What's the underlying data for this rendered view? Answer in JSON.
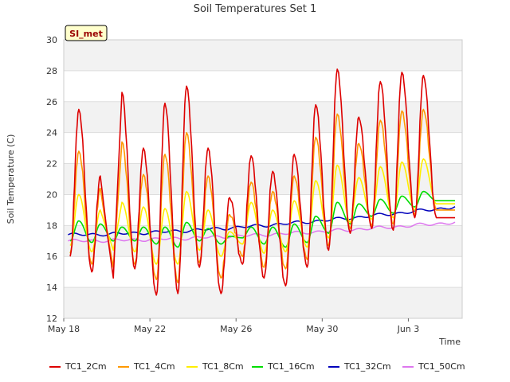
{
  "chart_data": {
    "type": "line",
    "title": "Soil Temperatures Set 1",
    "xlabel": "Time",
    "ylabel": "Soil Temperature (C)",
    "ylim": [
      12,
      30
    ],
    "yticks": [
      "12",
      "14",
      "16",
      "18",
      "20",
      "22",
      "24",
      "26",
      "28",
      "30"
    ],
    "xlim": [
      "2023-05-18",
      "2023-06-05T12:00"
    ],
    "xticks": [
      {
        "date": "2023-05-18",
        "label": "May 18"
      },
      {
        "date": "2023-05-22",
        "label": "May 22"
      },
      {
        "date": "2023-05-26",
        "label": "May 26"
      },
      {
        "date": "2023-05-30",
        "label": "May 30"
      },
      {
        "date": "2023-06-03",
        "label": "Jun 3"
      }
    ],
    "grid": "horizontal bands",
    "legend_placement": "bottom",
    "annotation": "SI_met",
    "days": [
      "2023-05-18",
      "2023-05-19",
      "2023-05-20",
      "2023-05-21",
      "2023-05-22",
      "2023-05-23",
      "2023-05-24",
      "2023-05-25",
      "2023-05-26",
      "2023-05-27",
      "2023-05-28",
      "2023-05-29",
      "2023-05-30",
      "2023-05-31",
      "2023-06-01",
      "2023-06-02",
      "2023-06-03",
      "2023-06-04",
      "2023-06-05"
    ],
    "series": [
      {
        "name": "TC1_2Cm",
        "color": "#dd0000",
        "daily_max": [
          25.5,
          21.2,
          26.6,
          23.0,
          25.9,
          27.0,
          23.0,
          19.8,
          22.5,
          21.5,
          22.6,
          25.8,
          28.1,
          25.0,
          27.3,
          27.9,
          27.7,
          null,
          null
        ],
        "daily_min": [
          16.0,
          15.0,
          14.6,
          15.2,
          13.5,
          13.6,
          15.3,
          13.6,
          15.5,
          14.6,
          14.1,
          15.3,
          16.4,
          17.5,
          17.8,
          17.7,
          18.5,
          18.5,
          null
        ]
      },
      {
        "name": "TC1_4Cm",
        "color": "#ff9900",
        "daily_max": [
          22.8,
          20.4,
          23.4,
          21.3,
          22.6,
          24.0,
          21.2,
          18.7,
          20.8,
          20.2,
          21.2,
          23.7,
          25.2,
          23.3,
          24.8,
          25.4,
          25.5,
          null,
          null
        ],
        "daily_min": [
          16.2,
          15.5,
          15.3,
          15.5,
          14.5,
          14.3,
          15.6,
          14.6,
          16.0,
          15.3,
          15.2,
          15.8,
          16.7,
          17.8,
          18.0,
          18.1,
          18.7,
          19.0,
          null
        ]
      },
      {
        "name": "TC1_8Cm",
        "color": "#ffee00",
        "daily_max": [
          20.0,
          19.0,
          19.5,
          19.2,
          19.1,
          20.2,
          19.0,
          17.6,
          19.5,
          19.0,
          19.6,
          20.9,
          21.9,
          21.1,
          21.8,
          22.1,
          22.3,
          null,
          null
        ],
        "daily_min": [
          16.7,
          16.3,
          16.4,
          16.3,
          15.5,
          15.5,
          16.4,
          16.0,
          16.8,
          16.2,
          16.3,
          16.6,
          17.2,
          18.2,
          18.4,
          18.5,
          19.0,
          19.4,
          null
        ]
      },
      {
        "name": "TC1_16Cm",
        "color": "#00dd00",
        "daily_max": [
          18.3,
          18.1,
          17.9,
          17.9,
          17.9,
          18.2,
          17.8,
          17.3,
          17.9,
          17.9,
          18.1,
          18.6,
          19.5,
          19.4,
          19.7,
          19.9,
          20.2,
          null,
          null
        ],
        "daily_min": [
          17.0,
          16.9,
          17.0,
          17.0,
          16.8,
          16.6,
          17.0,
          16.8,
          17.2,
          16.8,
          16.6,
          16.9,
          17.5,
          18.1,
          18.6,
          18.8,
          19.2,
          19.6,
          null
        ]
      },
      {
        "name": "TC1_32Cm",
        "color": "#0000bb",
        "start": 17.4,
        "end": 19.2
      },
      {
        "name": "TC1_50Cm",
        "color": "#dd77ee",
        "start": 17.0,
        "end": 18.2
      }
    ]
  }
}
